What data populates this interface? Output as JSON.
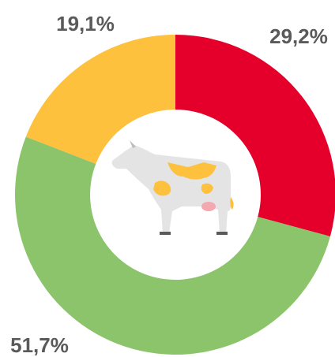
{
  "chart_data": {
    "type": "donut",
    "values": [
      29.2,
      51.7,
      19.1
    ],
    "value_labels": [
      "29,2%",
      "51,7%",
      "19,1%"
    ],
    "colors": [
      "#e4002b",
      "#8cc46c",
      "#fdc13e"
    ]
  }
}
